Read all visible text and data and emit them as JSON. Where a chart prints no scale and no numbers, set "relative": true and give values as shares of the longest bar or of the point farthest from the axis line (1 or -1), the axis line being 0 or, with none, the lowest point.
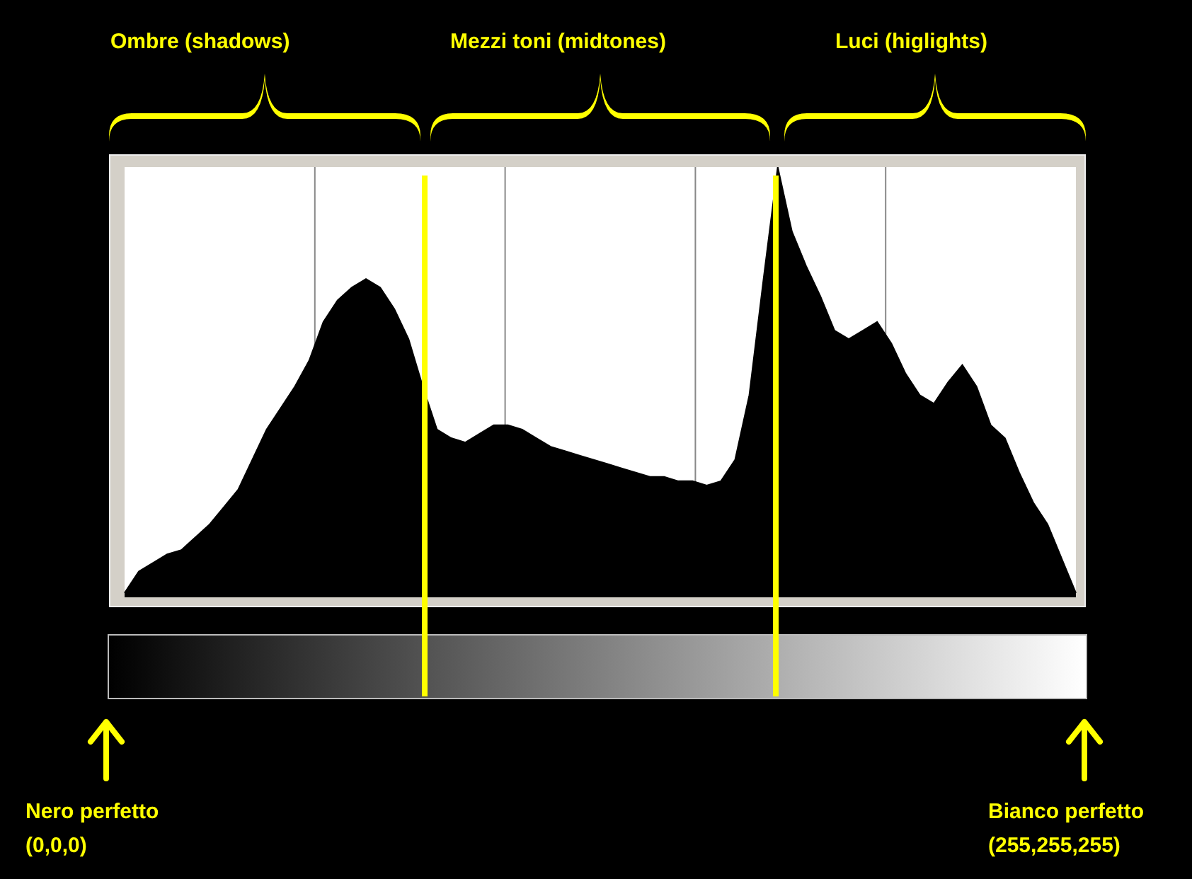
{
  "chart_data": {
    "type": "area",
    "relative": true,
    "color": "#000000",
    "categories": [
      null,
      null,
      null,
      null,
      null,
      null,
      null,
      null,
      null,
      null,
      null,
      null,
      null,
      null,
      null,
      null,
      null,
      null,
      null,
      null,
      null,
      null,
      null,
      null,
      null,
      null,
      null,
      null,
      null,
      null,
      null,
      null,
      null,
      null,
      null,
      null,
      null,
      null,
      null,
      null,
      null,
      null,
      null,
      null,
      null,
      null,
      null,
      null,
      null,
      null,
      null,
      null,
      null,
      null,
      null,
      null,
      null,
      null,
      null,
      null,
      null,
      null,
      null,
      null,
      null,
      null,
      null,
      null
    ],
    "values": [
      0.01,
      0.06,
      0.08,
      0.1,
      0.11,
      0.14,
      0.17,
      0.21,
      0.25,
      0.32,
      0.39,
      0.44,
      0.49,
      0.55,
      0.64,
      0.69,
      0.72,
      0.74,
      0.72,
      0.67,
      0.6,
      0.49,
      0.39,
      0.37,
      0.36,
      0.38,
      0.4,
      0.4,
      0.39,
      0.37,
      0.35,
      0.34,
      0.33,
      0.32,
      0.31,
      0.3,
      0.29,
      0.28,
      0.28,
      0.27,
      0.27,
      0.26,
      0.27,
      0.32,
      0.47,
      0.74,
      1,
      0.85,
      0.77,
      0.7,
      0.62,
      0.6,
      0.62,
      0.64,
      0.59,
      0.52,
      0.47,
      0.45,
      0.5,
      0.54,
      0.49,
      0.4,
      0.37,
      0.29,
      0.22,
      0.17,
      0.09,
      0.01
    ],
    "annotations": [
      "Ombre (shadows)",
      "Mezzi toni (midtones)",
      "Luci (higlights)",
      "Nero perfetto (0,0,0)",
      "Bianco perfetto (255,255,255)"
    ]
  }
}
